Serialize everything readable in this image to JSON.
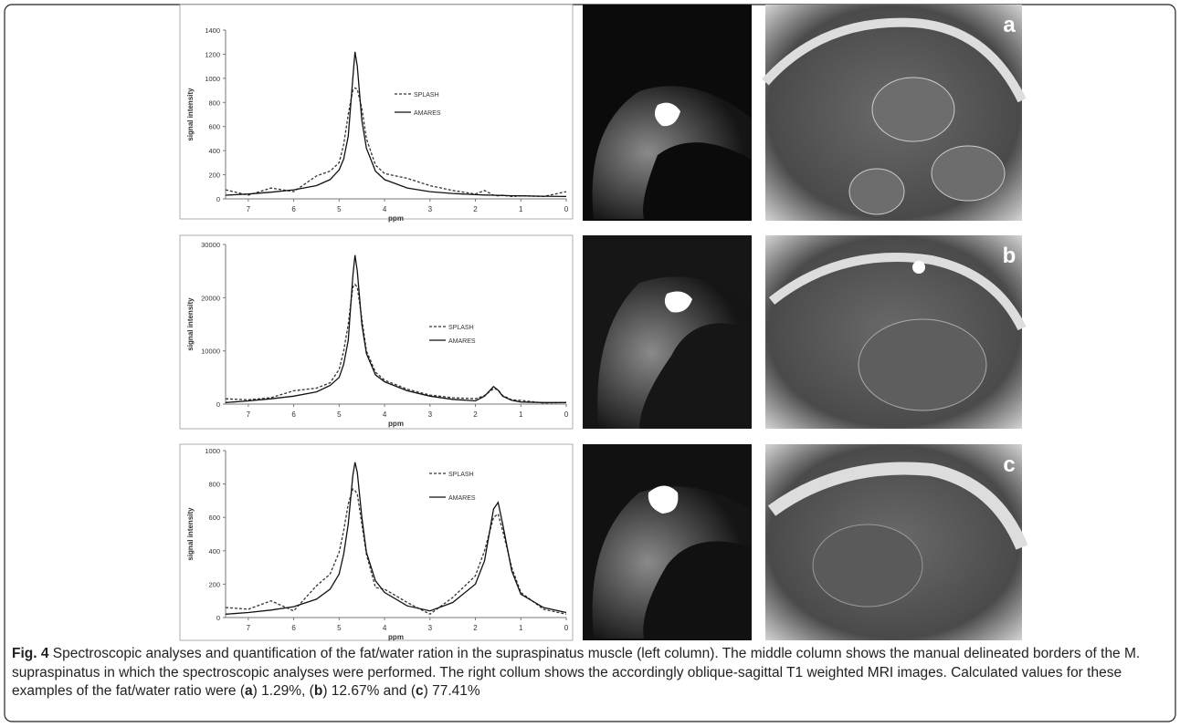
{
  "chart_data": [
    {
      "type": "line",
      "x_label": "ppm",
      "y_label": "signal intensity",
      "x": [
        7.5,
        7,
        6.5,
        6,
        5.5,
        5.2,
        5,
        4.9,
        4.8,
        4.7,
        4.65,
        4.6,
        4.5,
        4.4,
        4.2,
        4,
        3.5,
        3,
        2.5,
        2,
        1.8,
        1.6,
        1.5,
        1.4,
        1.2,
        1,
        0.5,
        0
      ],
      "xlim": [
        7.5,
        0
      ],
      "xticks": [
        7,
        6,
        5,
        4,
        3,
        2,
        1,
        0
      ],
      "ylim": [
        0,
        1400
      ],
      "yticks": [
        0,
        200,
        400,
        600,
        800,
        1000,
        1200,
        1400
      ],
      "series": [
        {
          "name": "SPLASH",
          "color": "#333333",
          "style": "dashed",
          "values": [
            75,
            30,
            90,
            60,
            190,
            230,
            300,
            450,
            700,
            900,
            920,
            910,
            750,
            500,
            280,
            210,
            170,
            110,
            70,
            40,
            70,
            30,
            25,
            30,
            20,
            25,
            20,
            60
          ]
        },
        {
          "name": "AMARES",
          "color": "#111111",
          "style": "solid",
          "values": [
            30,
            40,
            55,
            75,
            110,
            160,
            240,
            330,
            520,
            1000,
            1220,
            1100,
            650,
            420,
            230,
            160,
            90,
            60,
            45,
            35,
            32,
            30,
            29,
            28,
            26,
            25,
            22,
            20
          ]
        }
      ]
    },
    {
      "type": "line",
      "x_label": "ppm",
      "y_label": "signal intensity",
      "x": [
        7.5,
        7,
        6.5,
        6,
        5.5,
        5.2,
        5,
        4.9,
        4.8,
        4.7,
        4.65,
        4.6,
        4.5,
        4.4,
        4.2,
        4,
        3.5,
        3,
        2.5,
        2,
        1.8,
        1.6,
        1.5,
        1.4,
        1.2,
        1,
        0.5,
        0
      ],
      "xlim": [
        7.5,
        0
      ],
      "xticks": [
        7,
        6,
        5,
        4,
        3,
        2,
        1,
        0
      ],
      "ylim": [
        0,
        30000
      ],
      "yticks": [
        0,
        10000,
        20000,
        30000
      ],
      "series": [
        {
          "name": "SPLASH",
          "color": "#333333",
          "style": "dashed",
          "values": [
            1000,
            800,
            1200,
            2500,
            3000,
            4000,
            6500,
            10000,
            15000,
            22000,
            22500,
            22000,
            16000,
            10000,
            6000,
            4500,
            2800,
            1700,
            1200,
            1000,
            1600,
            2900,
            2700,
            1600,
            800,
            700,
            200,
            300
          ]
        },
        {
          "name": "AMARES",
          "color": "#111111",
          "style": "solid",
          "values": [
            300,
            600,
            1000,
            1500,
            2300,
            3500,
            5000,
            7500,
            12000,
            24000,
            28000,
            25000,
            15000,
            9500,
            5500,
            4200,
            2500,
            1500,
            900,
            600,
            1500,
            3300,
            2600,
            1500,
            700,
            400,
            300,
            300
          ]
        }
      ]
    },
    {
      "type": "line",
      "x_label": "ppm",
      "y_label": "signal intensity",
      "x": [
        7.5,
        7,
        6.5,
        6,
        5.5,
        5.2,
        5,
        4.9,
        4.8,
        4.7,
        4.65,
        4.6,
        4.5,
        4.4,
        4.2,
        4,
        3.5,
        3,
        2.5,
        2,
        1.8,
        1.6,
        1.5,
        1.4,
        1.2,
        1,
        0.5,
        0
      ],
      "xlim": [
        7.5,
        0
      ],
      "xticks": [
        7,
        6,
        5,
        4,
        3,
        2,
        1,
        0
      ],
      "ylim": [
        0,
        1000
      ],
      "yticks": [
        0,
        200,
        400,
        600,
        800,
        1000
      ],
      "series": [
        {
          "name": "SPLASH",
          "color": "#333333",
          "style": "dashed",
          "values": [
            60,
            50,
            100,
            40,
            190,
            260,
            390,
            520,
            680,
            770,
            760,
            740,
            560,
            380,
            180,
            170,
            90,
            20,
            120,
            250,
            400,
            600,
            620,
            520,
            300,
            150,
            50,
            20
          ]
        },
        {
          "name": "AMARES",
          "color": "#111111",
          "style": "solid",
          "values": [
            20,
            30,
            45,
            65,
            110,
            170,
            260,
            380,
            560,
            850,
            930,
            870,
            600,
            390,
            220,
            150,
            70,
            40,
            90,
            200,
            340,
            650,
            690,
            560,
            280,
            140,
            60,
            30
          ]
        }
      ]
    }
  ],
  "figure": {
    "panels": [
      "a",
      "b",
      "c"
    ],
    "caption": [
      {
        "text": "Fig. 4",
        "bold": true
      },
      {
        "text": " Spectroscopic analyses and quantification of the fat/water ration in the supraspinatus muscle (left column). The middle column shows the manual delineated borders of the M. supraspinatus in which the spectroscopic analyses were performed. The right collum shows the accordingly oblique-sagittal T1 weighted MRI images. Calculated values for these examples of the fat/water ratio were (",
        "bold": false
      },
      {
        "text": "a",
        "bold": true
      },
      {
        "text": ") 1.29%, (",
        "bold": false
      },
      {
        "text": "b",
        "bold": true
      },
      {
        "text": ") 12.67% and (",
        "bold": false
      },
      {
        "text": "c",
        "bold": true
      },
      {
        "text": ") 77.41%",
        "bold": false
      }
    ]
  }
}
